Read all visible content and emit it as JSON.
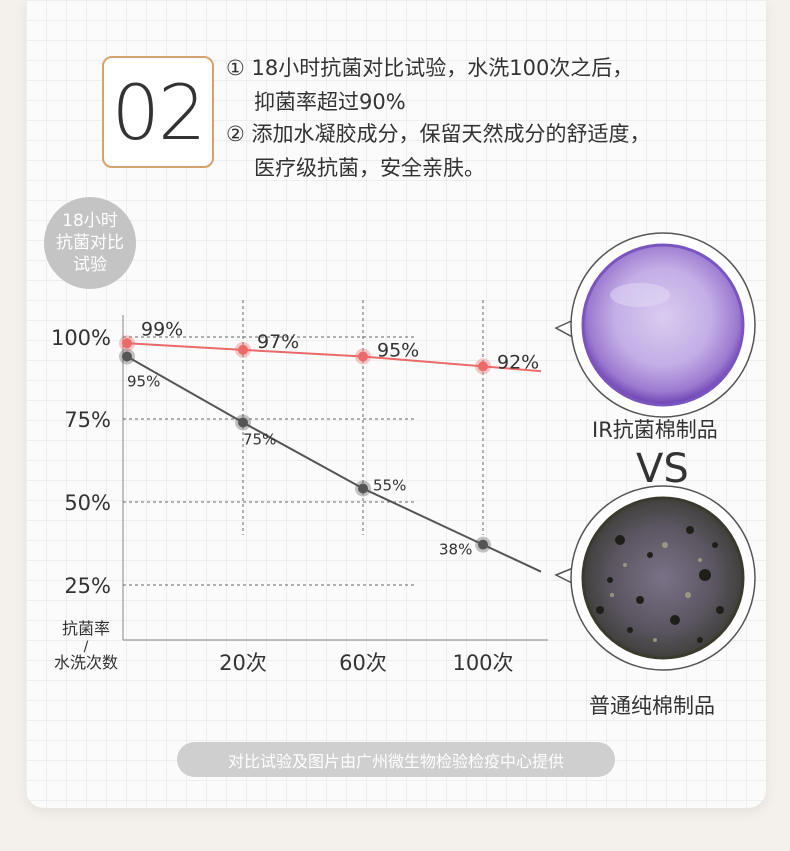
{
  "section_number": "02",
  "description": [
    "① 18小时抗菌对比试验，水洗100次之后，",
    "抑菌率超过90%",
    "② 添加水凝胶成分，保留天然成分的舒适度，",
    "医疗级抗菌，安全亲肤。"
  ],
  "badge_lines": [
    "18小时",
    "抗菌对比",
    "试验"
  ],
  "chart_data": {
    "type": "line",
    "ylabel": "抗菌率",
    "xlabel": "水洗次数",
    "slash": "/",
    "y_ticks": [
      "100%",
      "75%",
      "50%",
      "25%"
    ],
    "y_tick_values": [
      100,
      75,
      50,
      25
    ],
    "categories": [
      "",
      "20次",
      "60次",
      "100次"
    ],
    "x": [
      0,
      20,
      60,
      100
    ],
    "series": [
      {
        "values": [
          99,
          97,
          95,
          92
        ],
        "labels": [
          "99%",
          "97%",
          "95%",
          "92%"
        ],
        "color": "#ec6a6a"
      },
      {
        "values": [
          95,
          75,
          55,
          38
        ],
        "labels": [
          "95%",
          "75%",
          "55%",
          "38%"
        ],
        "color": "#555555"
      }
    ]
  },
  "dishes": {
    "top_label": "IR抗菌棉制品",
    "vs": "VS",
    "bottom_label": "普通纯棉制品"
  },
  "footer": "对比试验及图片由广州微生物检验检疫中心提供"
}
